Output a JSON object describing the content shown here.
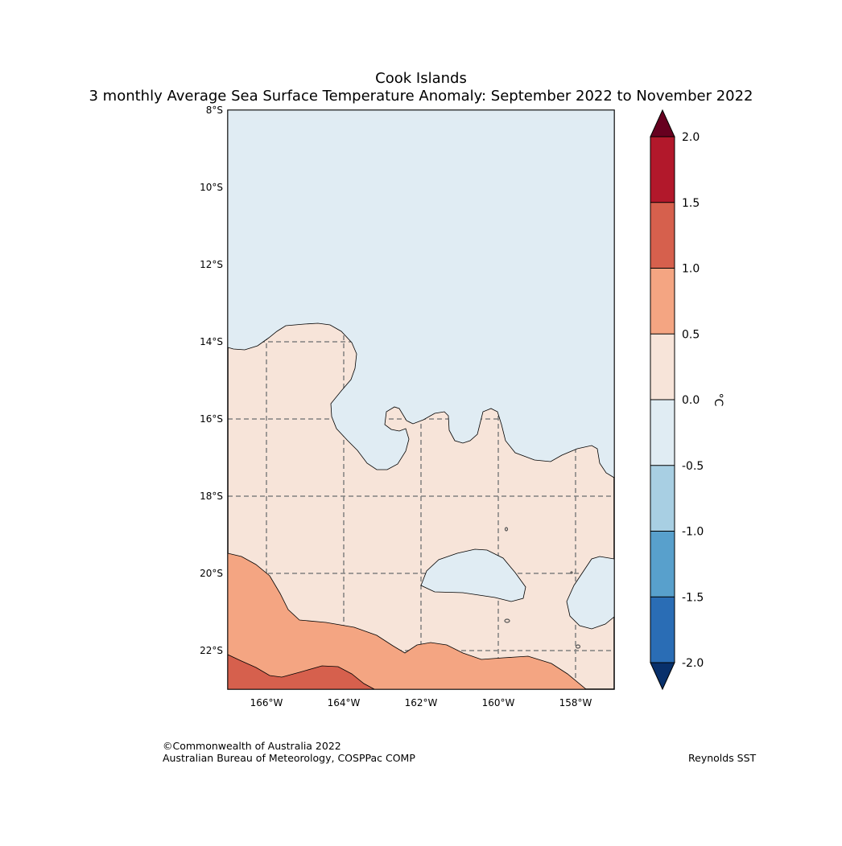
{
  "title": "Cook Islands",
  "subtitle": "3 monthly Average Sea Surface Temperature Anomaly: September 2022 to November 2022",
  "map": {
    "lat_labels": [
      "8°S",
      "10°S",
      "12°S",
      "14°S",
      "16°S",
      "18°S",
      "20°S",
      "22°S"
    ],
    "lon_labels": [
      "166°W",
      "164°W",
      "162°W",
      "160°W",
      "158°W"
    ],
    "lat_range": [
      -23,
      -8
    ],
    "lon_range": [
      -167,
      -157
    ]
  },
  "colorbar": {
    "unit": "°C",
    "ticks": [
      "2.0",
      "1.5",
      "1.0",
      "0.5",
      "0.0",
      "-0.5",
      "-1.0",
      "-1.5",
      "-2.0"
    ],
    "colors": {
      "over": "#67001f",
      "c15_20": "#b2182b",
      "c10_15": "#d6604d",
      "c05_10": "#f4a582",
      "c00_05": "#f7e4d9",
      "cn05_00": "#e0ecf3",
      "cn10_n05": "#a8cfe3",
      "cn15_n10": "#58a0cc",
      "cn20_n15": "#2a6db5",
      "under": "#08306b"
    }
  },
  "credits": {
    "copyright": "©Commonwealth of Australia 2022",
    "agency": "Australian Bureau of Meteorology, COSPPac COMP",
    "source": "Reynolds SST"
  }
}
